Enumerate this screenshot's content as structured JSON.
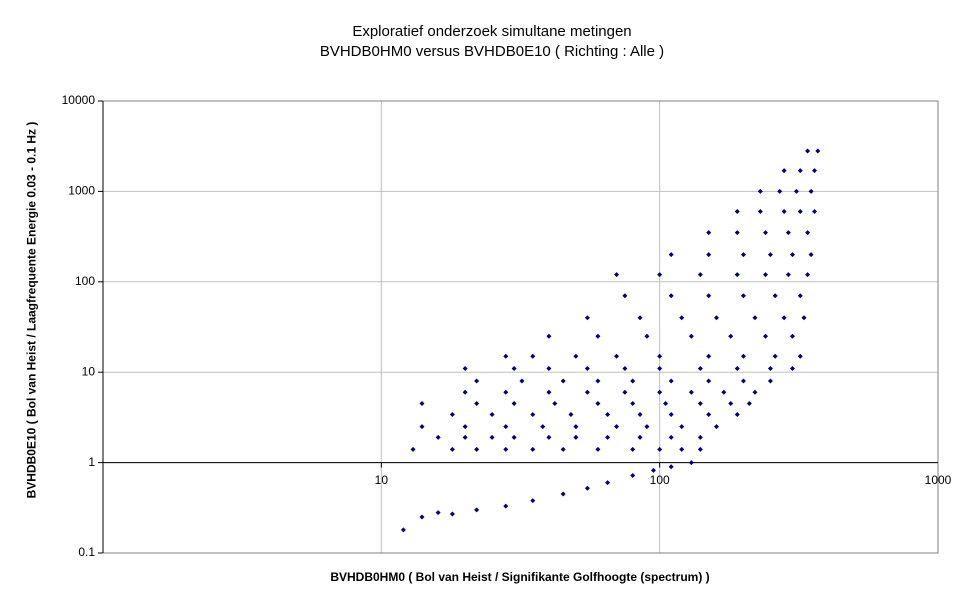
{
  "chart_data": {
    "type": "scatter",
    "title": "Exploratief onderzoek simultane metingen",
    "subtitle": "BVHDB0HM0 versus BVHDB0E10 ( Richting : Alle )",
    "x_label": "BVHDB0HM0 ( Bol van Heist / Signifikante Golfhoogte (spectrum) )",
    "y_label": "BVHDB0E10 ( Bol van Heist / Laagfrequente Energie 0.03 - 0.1 Hz )",
    "x_log": true,
    "y_log": true,
    "grid": true,
    "color": "#000080",
    "x_axis_at": 1,
    "xlim": [
      1,
      1000
    ],
    "xticks": [
      10,
      100,
      1000
    ],
    "ylim": [
      0.1,
      10000
    ],
    "yticks": [
      0.1,
      1,
      10,
      100,
      1000,
      10000
    ],
    "x": [
      12,
      14,
      16,
      18,
      22,
      28,
      35,
      45,
      55,
      65,
      80,
      95,
      110,
      130,
      13,
      18,
      22,
      28,
      35,
      45,
      60,
      80,
      100,
      120,
      140,
      16,
      20,
      25,
      30,
      40,
      50,
      65,
      85,
      110,
      140,
      14,
      20,
      28,
      38,
      50,
      70,
      90,
      120,
      160,
      18,
      25,
      35,
      48,
      65,
      85,
      110,
      150,
      190,
      14,
      22,
      30,
      42,
      60,
      80,
      105,
      140,
      180,
      210,
      20,
      28,
      40,
      55,
      75,
      100,
      130,
      170,
      220,
      22,
      32,
      45,
      60,
      80,
      110,
      150,
      200,
      250,
      20,
      30,
      40,
      55,
      75,
      100,
      140,
      190,
      250,
      300,
      28,
      35,
      50,
      70,
      100,
      150,
      200,
      260,
      320,
      40,
      60,
      90,
      130,
      180,
      240,
      300,
      55,
      85,
      120,
      160,
      220,
      280,
      330,
      75,
      110,
      150,
      200,
      260,
      320,
      70,
      100,
      140,
      190,
      240,
      290,
      340,
      110,
      150,
      200,
      250,
      300,
      350,
      150,
      190,
      240,
      290,
      340,
      190,
      230,
      280,
      320,
      360,
      230,
      270,
      310,
      350,
      280,
      320,
      360,
      340,
      370
    ],
    "values": [
      0.18,
      0.25,
      0.28,
      0.27,
      0.3,
      0.33,
      0.38,
      0.45,
      0.52,
      0.6,
      0.72,
      0.82,
      0.9,
      1.0,
      1.4,
      1.4,
      1.4,
      1.4,
      1.4,
      1.4,
      1.4,
      1.4,
      1.4,
      1.4,
      1.4,
      1.9,
      1.9,
      1.9,
      1.9,
      1.9,
      1.9,
      1.9,
      1.9,
      1.9,
      1.9,
      2.5,
      2.5,
      2.5,
      2.5,
      2.5,
      2.5,
      2.5,
      2.5,
      2.5,
      3.4,
      3.4,
      3.4,
      3.4,
      3.4,
      3.4,
      3.4,
      3.4,
      3.4,
      4.5,
      4.5,
      4.5,
      4.5,
      4.5,
      4.5,
      4.5,
      4.5,
      4.5,
      4.5,
      6,
      6,
      6,
      6,
      6,
      6,
      6,
      6,
      6,
      8,
      8,
      8,
      8,
      8,
      8,
      8,
      8,
      8,
      11,
      11,
      11,
      11,
      11,
      11,
      11,
      11,
      11,
      11,
      15,
      15,
      15,
      15,
      15,
      15,
      15,
      15,
      15,
      25,
      25,
      25,
      25,
      25,
      25,
      25,
      40,
      40,
      40,
      40,
      40,
      40,
      40,
      70,
      70,
      70,
      70,
      70,
      70,
      120,
      120,
      120,
      120,
      120,
      120,
      120,
      200,
      200,
      200,
      200,
      200,
      200,
      350,
      350,
      350,
      350,
      350,
      600,
      600,
      600,
      600,
      600,
      1000,
      1000,
      1000,
      1000,
      1700,
      1700,
      1700,
      2800,
      2800
    ]
  }
}
